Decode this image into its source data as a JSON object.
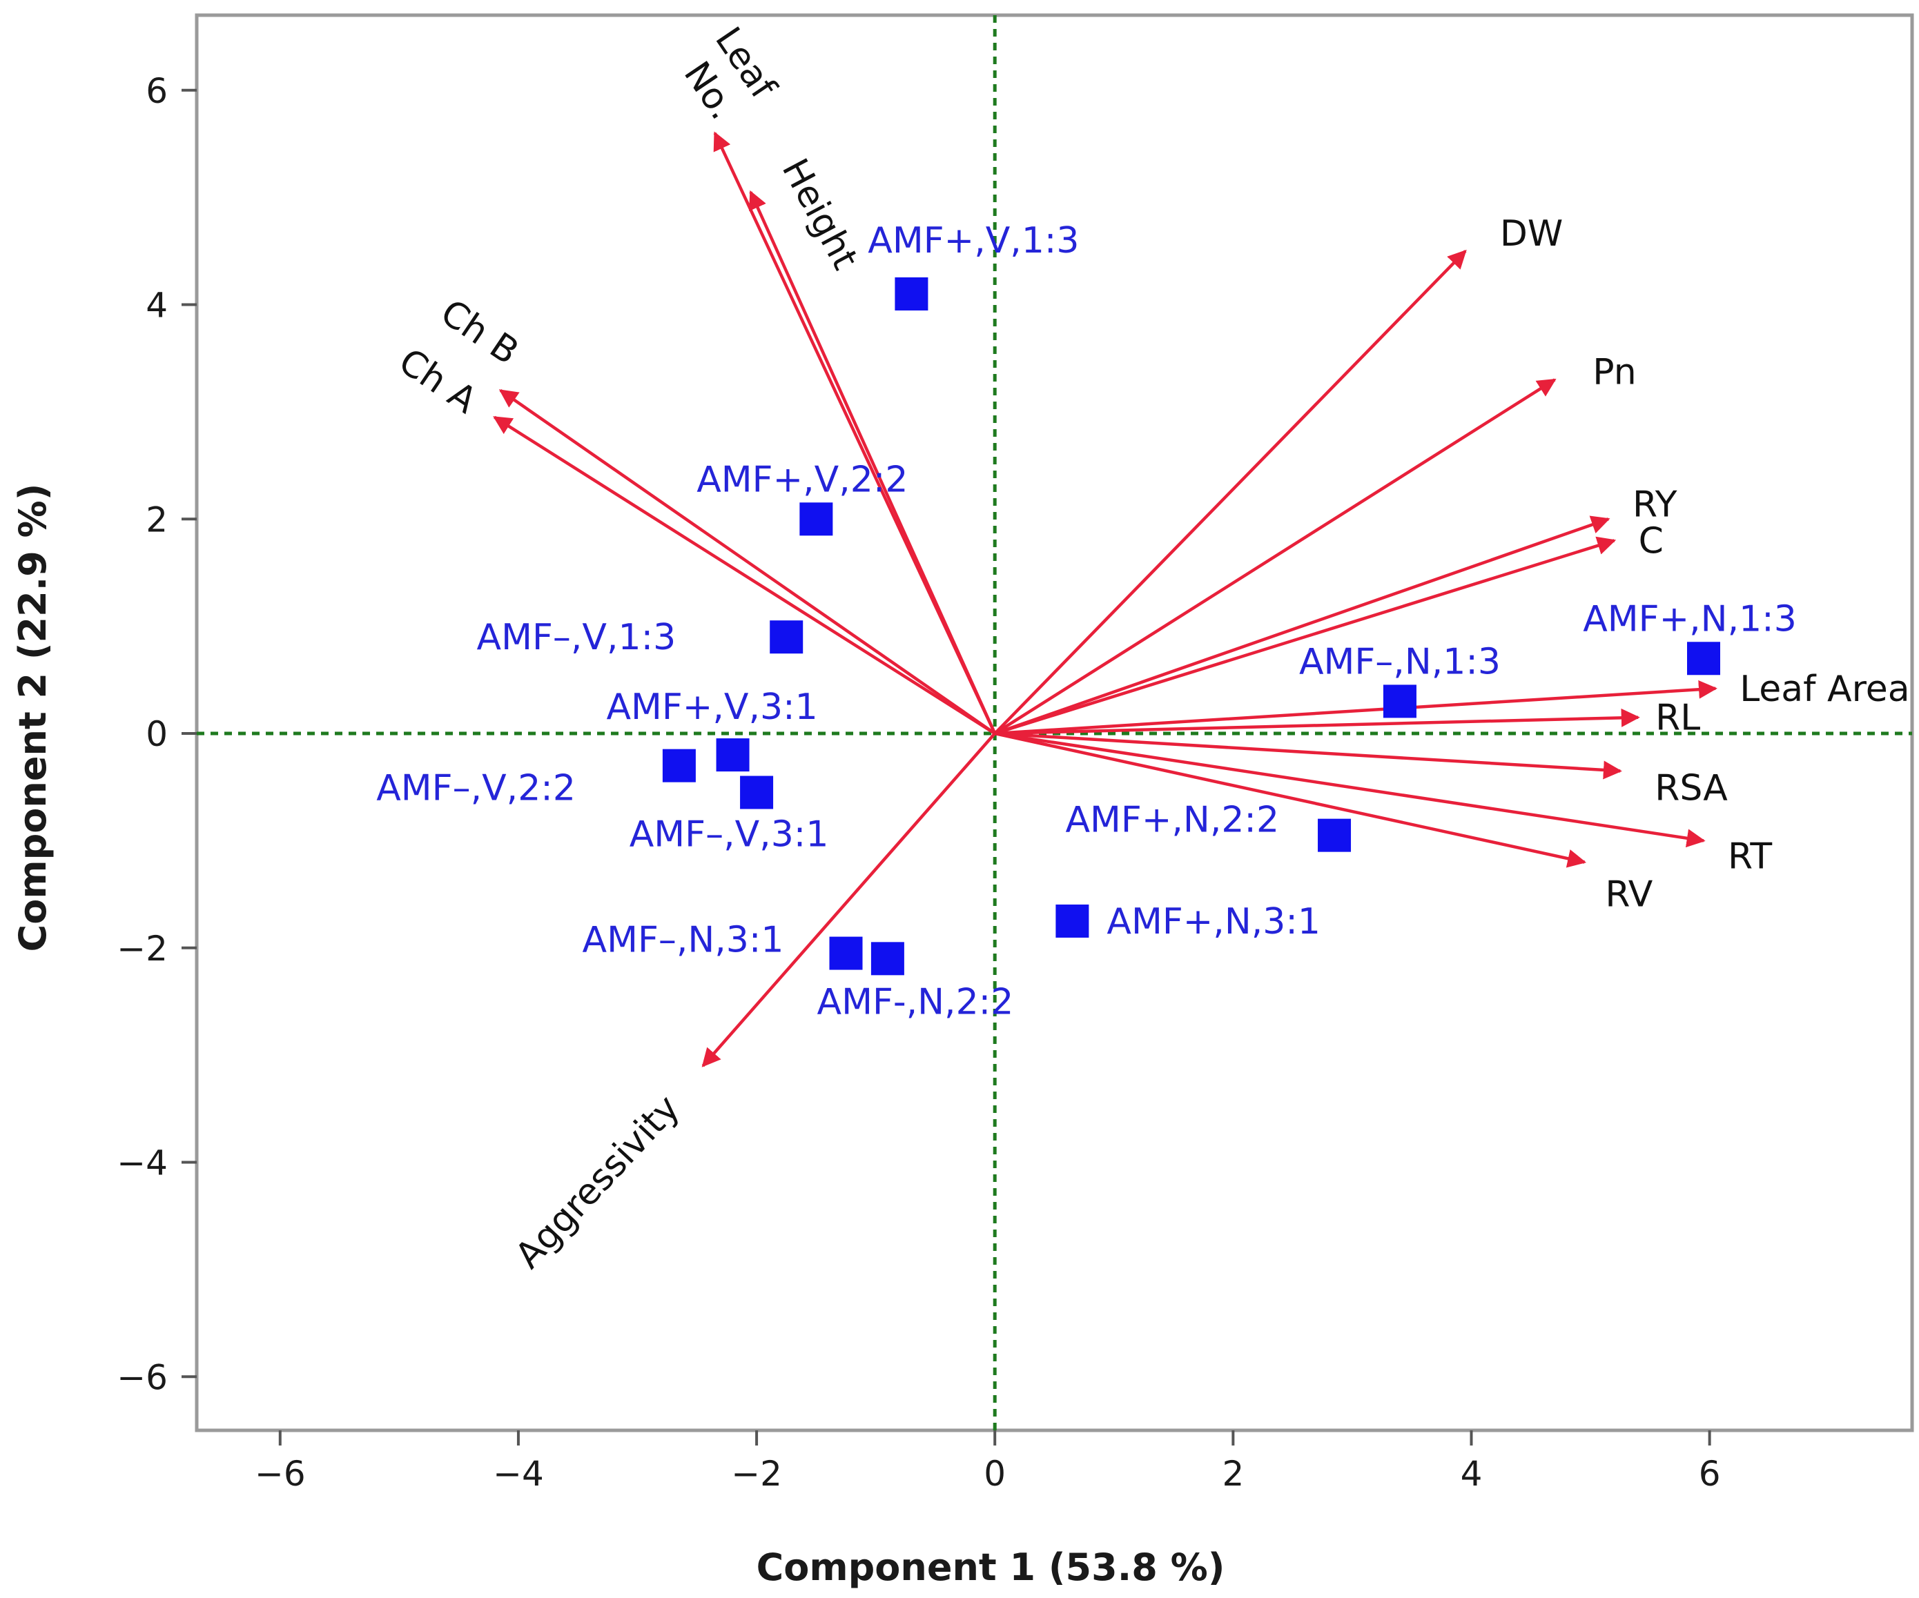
{
  "chart_data": {
    "type": "scatter",
    "subtype": "pca-biplot",
    "title": "",
    "xlabel": "Component 1  (53.8 %)",
    "ylabel": "Component 2  (22.9 %)",
    "xlim": [
      -6.7,
      7.7
    ],
    "ylim": [
      -6.5,
      6.7
    ],
    "xticks": [
      -6,
      -4,
      -2,
      0,
      2,
      4,
      6
    ],
    "yticks": [
      -6,
      -4,
      -2,
      0,
      2,
      4,
      6
    ],
    "xtick_labels": [
      "−6",
      "−4",
      "−2",
      "0",
      "2",
      "4",
      "6"
    ],
    "ytick_labels": [
      "−6",
      "−4",
      "−2",
      "0",
      "2",
      "4",
      "6"
    ],
    "zero_lines": "dashed",
    "colors": {
      "vector": "#e8203a",
      "observation": "#1010f0",
      "observation_label": "#2424d8",
      "zero_line": "#1f7a1f",
      "frame": "#9a9a9a"
    },
    "vectors": [
      {
        "name": "Leaf No.",
        "lines": [
          "Leaf",
          "No."
        ],
        "x": -2.35,
        "y": 5.6
      },
      {
        "name": "Height",
        "lines": [
          "Height"
        ],
        "x": -2.05,
        "y": 5.05
      },
      {
        "name": "Ch B",
        "lines": [
          "Ch B"
        ],
        "x": -4.15,
        "y": 3.2
      },
      {
        "name": "Ch A",
        "lines": [
          "Ch A"
        ],
        "x": -4.2,
        "y": 2.95
      },
      {
        "name": "DW",
        "lines": [
          "DW"
        ],
        "x": 3.95,
        "y": 4.5
      },
      {
        "name": "Pn",
        "lines": [
          "Pn"
        ],
        "x": 4.7,
        "y": 3.3
      },
      {
        "name": "RY",
        "lines": [
          "RY"
        ],
        "x": 5.15,
        "y": 2.0
      },
      {
        "name": "C",
        "lines": [
          "C"
        ],
        "x": 5.2,
        "y": 1.8
      },
      {
        "name": "Leaf Area",
        "lines": [
          "Leaf Area"
        ],
        "x": 6.05,
        "y": 0.42
      },
      {
        "name": "RL",
        "lines": [
          "RL"
        ],
        "x": 5.4,
        "y": 0.15
      },
      {
        "name": "RSA",
        "lines": [
          "RSA"
        ],
        "x": 5.25,
        "y": -0.35
      },
      {
        "name": "RT",
        "lines": [
          "RT"
        ],
        "x": 5.95,
        "y": -1.0
      },
      {
        "name": "RV",
        "lines": [
          "RV"
        ],
        "x": 4.95,
        "y": -1.2
      },
      {
        "name": "Aggressivity",
        "lines": [
          "Aggressivity"
        ],
        "x": -2.45,
        "y": -3.1
      }
    ],
    "observations": [
      {
        "label": "AMF+,V,1:3",
        "x": -0.7,
        "y": 4.1
      },
      {
        "label": "AMF+,V,2:2",
        "x": -1.5,
        "y": 2.0
      },
      {
        "label": "AMF–,V,1:3",
        "x": -1.75,
        "y": 0.9
      },
      {
        "label": "AMF+,V,3:1",
        "x": -2.2,
        "y": -0.2
      },
      {
        "label": "AMF–,V,2:2",
        "x": -2.65,
        "y": -0.3
      },
      {
        "label": "AMF–,V,3:1",
        "x": -2.0,
        "y": -0.55
      },
      {
        "label": "AMF–,N,3:1",
        "x": -1.25,
        "y": -2.05
      },
      {
        "label": "AMF-,N,2:2",
        "x": -0.9,
        "y": -2.1
      },
      {
        "label": "AMF+,N,3:1",
        "x": 0.65,
        "y": -1.75
      },
      {
        "label": "AMF+,N,2:2",
        "x": 2.85,
        "y": -0.95
      },
      {
        "label": "AMF–,N,1:3",
        "x": 3.4,
        "y": 0.3
      },
      {
        "label": "AMF+,N,1:3",
        "x": 5.95,
        "y": 0.7
      }
    ]
  }
}
